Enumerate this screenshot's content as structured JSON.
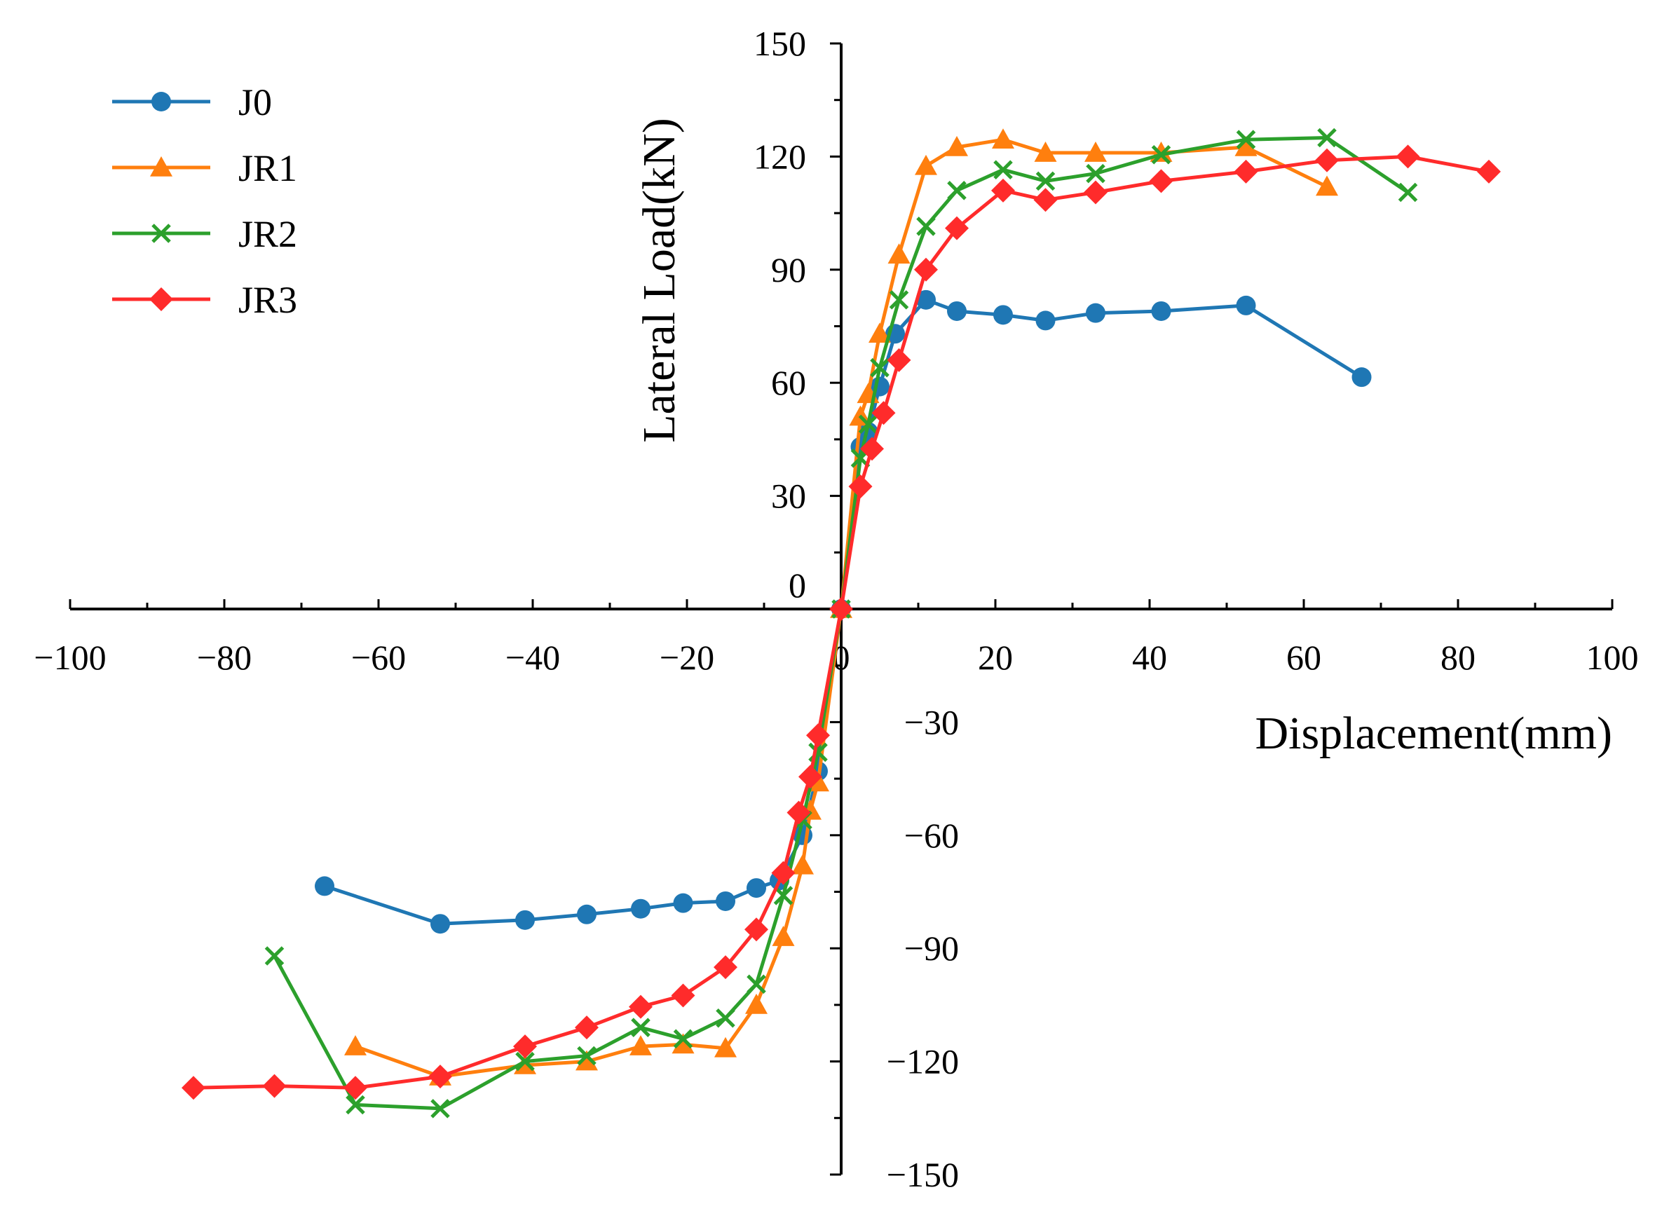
{
  "chart_data": {
    "type": "line",
    "title": "",
    "xlabel": "Displacement(mm)",
    "ylabel": "Lateral Load(kN)",
    "xlim": [
      -100,
      100
    ],
    "ylim": [
      -150,
      150
    ],
    "x_ticks": [
      -100,
      -80,
      -60,
      -40,
      -20,
      0,
      20,
      40,
      60,
      80,
      100
    ],
    "y_ticks": [
      -150,
      -120,
      -90,
      -60,
      -30,
      0,
      30,
      60,
      90,
      120,
      150
    ],
    "x_tick_labels": [
      "−100",
      "−80",
      "−60",
      "−40",
      "−20",
      "0",
      "20",
      "40",
      "60",
      "80",
      "100"
    ],
    "y_tick_labels": [
      "−150",
      "−120",
      "−90",
      "−60",
      "−30",
      "0",
      "30",
      "60",
      "90",
      "120",
      "150"
    ],
    "legend_position": "top-left",
    "series": [
      {
        "name": "J0",
        "color": "#1f77b4",
        "marker": "circle",
        "points": [
          [
            -67,
            -73.5
          ],
          [
            -52,
            -83.5
          ],
          [
            -41,
            -82.5
          ],
          [
            -33,
            -81
          ],
          [
            -26,
            -79.5
          ],
          [
            -20.5,
            -78
          ],
          [
            -15,
            -77.5
          ],
          [
            -11,
            -74
          ],
          [
            -8,
            -72
          ],
          [
            -5,
            -60
          ],
          [
            -3,
            -43
          ],
          [
            0,
            0
          ],
          [
            2.5,
            43
          ],
          [
            3.5,
            47
          ],
          [
            5,
            59
          ],
          [
            7,
            73
          ],
          [
            11,
            82
          ],
          [
            15,
            79
          ],
          [
            21,
            78
          ],
          [
            26.5,
            76.5
          ],
          [
            33,
            78.5
          ],
          [
            41.5,
            79
          ],
          [
            52.5,
            80.5
          ],
          [
            67.5,
            61.5
          ]
        ]
      },
      {
        "name": "JR1",
        "color": "#ff7f0e",
        "marker": "triangle",
        "points": [
          [
            -63,
            -116
          ],
          [
            -52,
            -124
          ],
          [
            -41,
            -121
          ],
          [
            -33,
            -120
          ],
          [
            -26,
            -116
          ],
          [
            -20.5,
            -115.5
          ],
          [
            -15,
            -116.5
          ],
          [
            -11,
            -105
          ],
          [
            -7.5,
            -87
          ],
          [
            -5,
            -68
          ],
          [
            -4,
            -53.5
          ],
          [
            -3,
            -46
          ],
          [
            0,
            0
          ],
          [
            2.5,
            51
          ],
          [
            3.5,
            57
          ],
          [
            5,
            73
          ],
          [
            7.5,
            94
          ],
          [
            11,
            117.5
          ],
          [
            15,
            122.5
          ],
          [
            21,
            124.5
          ],
          [
            26.5,
            121
          ],
          [
            33,
            121
          ],
          [
            41.5,
            121
          ],
          [
            52.5,
            122.5
          ],
          [
            63,
            112
          ]
        ]
      },
      {
        "name": "JR2",
        "color": "#2ca02c",
        "marker": "x",
        "points": [
          [
            -73.5,
            -92
          ],
          [
            -63,
            -131.5
          ],
          [
            -52,
            -132.5
          ],
          [
            -41,
            -120
          ],
          [
            -33,
            -118.5
          ],
          [
            -26,
            -111
          ],
          [
            -20.5,
            -114
          ],
          [
            -15,
            -108.5
          ],
          [
            -11,
            -99.5
          ],
          [
            -7.5,
            -76
          ],
          [
            -5,
            -56
          ],
          [
            -3,
            -38
          ],
          [
            0,
            0
          ],
          [
            2.5,
            40
          ],
          [
            3.5,
            49
          ],
          [
            5,
            64
          ],
          [
            7.5,
            82
          ],
          [
            11,
            101.5
          ],
          [
            15,
            111
          ],
          [
            21,
            116.5
          ],
          [
            26.5,
            113.5
          ],
          [
            33,
            115.5
          ],
          [
            41.5,
            120.5
          ],
          [
            52.5,
            124.5
          ],
          [
            63,
            125
          ],
          [
            73.5,
            110.5
          ]
        ]
      },
      {
        "name": "JR3",
        "color": "#ff2b2b",
        "marker": "diamond",
        "points": [
          [
            -84,
            -127
          ],
          [
            -73.5,
            -126.5
          ],
          [
            -63,
            -127
          ],
          [
            -52,
            -124
          ],
          [
            -41,
            -116
          ],
          [
            -33,
            -111
          ],
          [
            -26,
            -105.5
          ],
          [
            -20.5,
            -102.5
          ],
          [
            -15,
            -95
          ],
          [
            -11,
            -85
          ],
          [
            -7.5,
            -70
          ],
          [
            -5.5,
            -54
          ],
          [
            -4,
            -44.5
          ],
          [
            -3,
            -33.5
          ],
          [
            0,
            0
          ],
          [
            2.5,
            32.5
          ],
          [
            4,
            42.5
          ],
          [
            5.5,
            52
          ],
          [
            7.5,
            66
          ],
          [
            11,
            90
          ],
          [
            15,
            101
          ],
          [
            21,
            111
          ],
          [
            26.5,
            108.5
          ],
          [
            33,
            110.5
          ],
          [
            41.5,
            113.5
          ],
          [
            52.5,
            116
          ],
          [
            63,
            119
          ],
          [
            73.5,
            120
          ],
          [
            84,
            116
          ]
        ]
      }
    ]
  }
}
